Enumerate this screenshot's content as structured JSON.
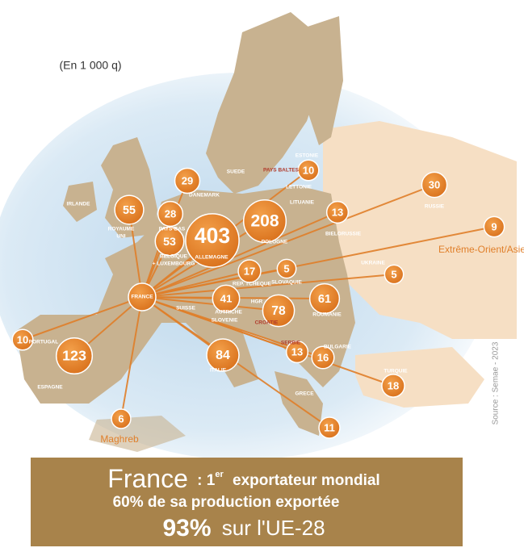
{
  "unit": "(En 1 000 q)",
  "origin": "FRANCE",
  "bubbles": [
    55,
    29,
    28,
    53,
    403,
    208,
    10,
    30,
    13,
    9,
    17,
    5,
    5,
    41,
    78,
    61,
    10,
    123,
    84,
    13,
    16,
    18,
    11,
    6
  ],
  "map_labels": [
    "IRLANDE",
    "ROYAUME",
    "UNI",
    "SUEDE",
    "DANEMARK",
    "PAYS-BAS",
    "BELGIQUE",
    "+ LUXEMBOURG",
    "ALLEMAGNE",
    "POLOGNE",
    "PAYS BALTES",
    "ESTONIE",
    "LETTONIE",
    "LITUANIE",
    "RUSSIE",
    "BIELORUSSIE",
    "UKRAINE",
    "REP. TCHEQUE",
    "SLOVAQUIE",
    "AUTRICHE",
    "SLOVENIE",
    "HGR",
    "CROATIE",
    "ROUMANIE",
    "SUISSE",
    "PORTUGAL",
    "ESPAGNE",
    "ITALIE",
    "SERBIE",
    "BULGARIE",
    "TURQUIE",
    "GRECE"
  ],
  "far_labels": [
    "Extrême-Orient/Asie",
    "Maghreb"
  ],
  "source": "Source : Semae - 2023",
  "banner": {
    "line1_big": "France",
    "line1_sep": ": 1",
    "line1_sup": "er",
    "line1_rest": "exportateur mondial",
    "line2": "60% de sa production exportée",
    "line3_big": "93%",
    "line3_rest": "sur l'UE-28"
  }
}
